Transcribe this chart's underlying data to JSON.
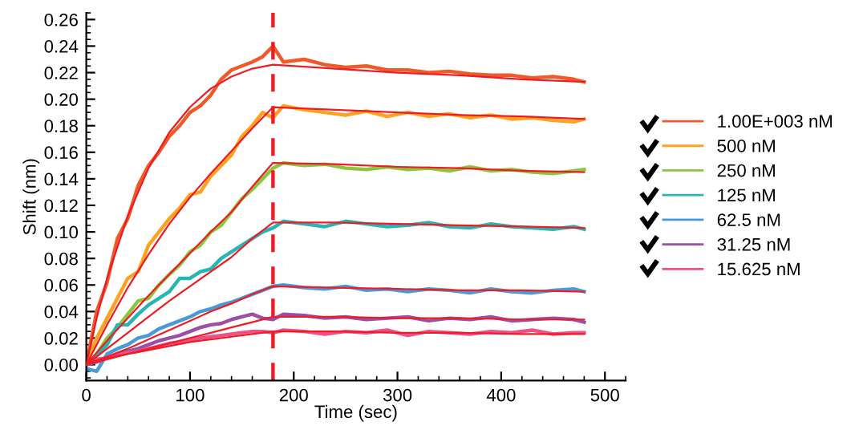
{
  "chart_data": {
    "type": "line",
    "xlabel": "Time (sec)",
    "ylabel": "Shift (nm)",
    "xlim": [
      0,
      520
    ],
    "ylim": [
      -0.012,
      0.265
    ],
    "xticks": [
      0,
      100,
      200,
      300,
      400,
      500
    ],
    "yticks": [
      {
        "value": 0,
        "label": "0.00"
      },
      {
        "value": 0.02,
        "label": "0.02"
      },
      {
        "value": 0.04,
        "label": "0.04"
      },
      {
        "value": 0.06,
        "label": "0.06"
      },
      {
        "value": 0.08,
        "label": "0.08"
      },
      {
        "value": 0.1,
        "label": "0.10"
      },
      {
        "value": 0.12,
        "label": "0.12"
      },
      {
        "value": 0.14,
        "label": "0.14"
      },
      {
        "value": 0.16,
        "label": "0.16"
      },
      {
        "value": 0.18,
        "label": "0.18"
      },
      {
        "value": 0.2,
        "label": "0.20"
      },
      {
        "value": 0.22,
        "label": "0.22"
      },
      {
        "value": 0.24,
        "label": "0.24"
      },
      {
        "value": 0.26,
        "label": "0.26"
      }
    ],
    "x": [
      0,
      10,
      20,
      30,
      40,
      50,
      60,
      70,
      80,
      90,
      100,
      110,
      120,
      130,
      140,
      150,
      160,
      170,
      180,
      190,
      210,
      230,
      250,
      270,
      290,
      310,
      330,
      350,
      370,
      390,
      410,
      430,
      450,
      470,
      480
    ],
    "grid": false,
    "legend": "right",
    "marker": "none",
    "line_style": "solid",
    "ref_lines": [
      {
        "axis": "x",
        "value": 180,
        "label": null,
        "color": "#ee1c25",
        "line_style": "dashed"
      }
    ],
    "series": [
      {
        "name": "1.00E+003 nM",
        "color": "#f05a28",
        "values": [
          0,
          0.04,
          0.062,
          0.095,
          0.11,
          0.135,
          0.15,
          0.16,
          0.172,
          0.18,
          0.19,
          0.195,
          0.203,
          0.215,
          0.222,
          0.225,
          0.228,
          0.232,
          0.24,
          0.228,
          0.23,
          0.226,
          0.224,
          0.225,
          0.222,
          0.222,
          0.22,
          0.221,
          0.219,
          0.218,
          0.218,
          0.216,
          0.217,
          0.215,
          0.213
        ]
      },
      {
        "name": "500 nM",
        "color": "#ffa21f",
        "values": [
          0,
          0.02,
          0.035,
          0.05,
          0.065,
          0.07,
          0.09,
          0.1,
          0.11,
          0.118,
          0.128,
          0.13,
          0.142,
          0.15,
          0.158,
          0.172,
          0.18,
          0.19,
          0.186,
          0.195,
          0.192,
          0.19,
          0.188,
          0.191,
          0.187,
          0.19,
          0.187,
          0.189,
          0.186,
          0.188,
          0.185,
          0.186,
          0.184,
          0.183,
          0.185
        ]
      },
      {
        "name": "250 nM",
        "color": "#8cc63f",
        "values": [
          0,
          0.008,
          0.02,
          0.028,
          0.038,
          0.048,
          0.05,
          0.06,
          0.068,
          0.075,
          0.085,
          0.09,
          0.1,
          0.105,
          0.115,
          0.125,
          0.132,
          0.14,
          0.148,
          0.152,
          0.15,
          0.151,
          0.148,
          0.147,
          0.149,
          0.147,
          0.148,
          0.146,
          0.149,
          0.146,
          0.147,
          0.145,
          0.144,
          0.146,
          0.147
        ]
      },
      {
        "name": "125 nM",
        "color": "#2ab5b5",
        "values": [
          0,
          0.007,
          0.015,
          0.03,
          0.03,
          0.038,
          0.045,
          0.05,
          0.055,
          0.065,
          0.065,
          0.07,
          0.072,
          0.08,
          0.085,
          0.09,
          0.095,
          0.1,
          0.103,
          0.108,
          0.106,
          0.104,
          0.108,
          0.106,
          0.104,
          0.105,
          0.107,
          0.104,
          0.103,
          0.106,
          0.104,
          0.103,
          0.102,
          0.104,
          0.102
        ]
      },
      {
        "name": "62.5 nM",
        "color": "#4a9ad8",
        "values": [
          -0.003,
          -0.005,
          0.008,
          0.012,
          0.015,
          0.02,
          0.022,
          0.027,
          0.03,
          0.033,
          0.036,
          0.04,
          0.042,
          0.045,
          0.047,
          0.05,
          0.053,
          0.056,
          0.059,
          0.06,
          0.058,
          0.057,
          0.059,
          0.056,
          0.057,
          0.055,
          0.057,
          0.056,
          0.054,
          0.057,
          0.055,
          0.054,
          0.056,
          0.057,
          0.055
        ]
      },
      {
        "name": "31.25 nM",
        "color": "#9b4fa5",
        "values": [
          0,
          0.002,
          0.005,
          0.008,
          0.01,
          0.012,
          0.015,
          0.018,
          0.02,
          0.022,
          0.025,
          0.028,
          0.03,
          0.031,
          0.034,
          0.036,
          0.038,
          0.035,
          0.034,
          0.038,
          0.037,
          0.035,
          0.036,
          0.034,
          0.035,
          0.036,
          0.033,
          0.035,
          0.034,
          0.036,
          0.033,
          0.034,
          0.035,
          0.034,
          0.032
        ]
      },
      {
        "name": "15.625 nM",
        "color": "#f0508a",
        "values": [
          0.002,
          0.004,
          0.005,
          0.007,
          0.009,
          0.01,
          0.012,
          0.014,
          0.016,
          0.017,
          0.018,
          0.02,
          0.021,
          0.022,
          0.023,
          0.024,
          0.025,
          0.025,
          0.024,
          0.026,
          0.025,
          0.023,
          0.025,
          0.024,
          0.026,
          0.022,
          0.025,
          0.024,
          0.023,
          0.025,
          0.024,
          0.026,
          0.023,
          0.024,
          0.024
        ]
      },
      {
        "type": "line",
        "color": "#ee1c25",
        "x": [
          0,
          10,
          20,
          40,
          60,
          80,
          100,
          120,
          140,
          160,
          180,
          240,
          300,
          360,
          420,
          480
        ],
        "values": [
          0,
          0.035,
          0.065,
          0.112,
          0.148,
          0.175,
          0.194,
          0.208,
          0.217,
          0.223,
          0.226,
          0.223,
          0.22,
          0.218,
          0.215,
          0.213
        ]
      },
      {
        "type": "line",
        "color": "#ee1c25",
        "x": [
          0,
          10,
          20,
          40,
          60,
          80,
          100,
          120,
          140,
          160,
          180,
          240,
          300,
          360,
          420,
          480
        ],
        "values": [
          0,
          0.015,
          0.03,
          0.058,
          0.083,
          0.106,
          0.126,
          0.144,
          0.161,
          0.178,
          0.194,
          0.192,
          0.19,
          0.188,
          0.187,
          0.185
        ]
      },
      {
        "type": "line",
        "color": "#ee1c25",
        "x": [
          0,
          10,
          20,
          40,
          60,
          80,
          100,
          120,
          140,
          160,
          180,
          240,
          300,
          360,
          420,
          480
        ],
        "values": [
          0,
          0.009,
          0.018,
          0.035,
          0.052,
          0.068,
          0.084,
          0.1,
          0.115,
          0.134,
          0.152,
          0.151,
          0.149,
          0.148,
          0.146,
          0.145
        ]
      },
      {
        "type": "line",
        "color": "#ee1c25",
        "x": [
          0,
          10,
          20,
          40,
          60,
          80,
          100,
          120,
          140,
          160,
          180,
          240,
          300,
          360,
          420,
          480
        ],
        "values": [
          0,
          0.006,
          0.012,
          0.024,
          0.036,
          0.048,
          0.059,
          0.07,
          0.081,
          0.095,
          0.107,
          0.107,
          0.106,
          0.105,
          0.104,
          0.103
        ]
      },
      {
        "type": "line",
        "color": "#ee1c25",
        "x": [
          0,
          10,
          20,
          40,
          60,
          80,
          100,
          120,
          140,
          160,
          180,
          240,
          300,
          360,
          420,
          480
        ],
        "values": [
          0,
          0.003,
          0.006,
          0.012,
          0.019,
          0.026,
          0.033,
          0.04,
          0.046,
          0.053,
          0.059,
          0.058,
          0.057,
          0.056,
          0.056,
          0.055
        ]
      },
      {
        "type": "line",
        "color": "#ee1c25",
        "x": [
          0,
          10,
          20,
          40,
          60,
          80,
          100,
          120,
          140,
          160,
          180,
          240,
          300,
          360,
          420,
          480
        ],
        "values": [
          0,
          0.002,
          0.004,
          0.008,
          0.012,
          0.016,
          0.02,
          0.024,
          0.028,
          0.032,
          0.036,
          0.036,
          0.035,
          0.035,
          0.034,
          0.034
        ]
      },
      {
        "type": "line",
        "color": "#ee1c25",
        "x": [
          0,
          10,
          20,
          40,
          60,
          80,
          100,
          120,
          140,
          160,
          180,
          240,
          300,
          360,
          420,
          480
        ],
        "values": [
          0.002,
          0.003,
          0.005,
          0.008,
          0.011,
          0.014,
          0.017,
          0.019,
          0.021,
          0.023,
          0.025,
          0.025,
          0.024,
          0.024,
          0.023,
          0.023
        ]
      }
    ]
  }
}
